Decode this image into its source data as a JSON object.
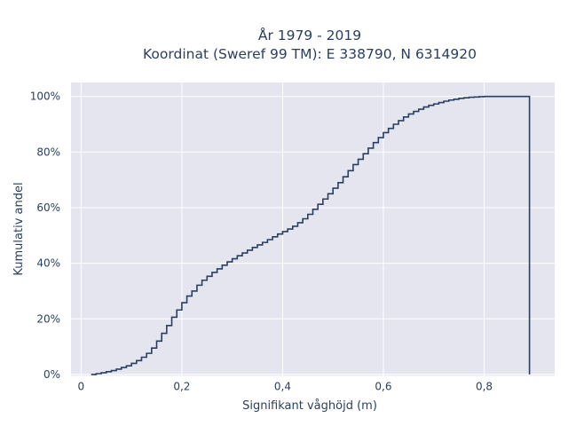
{
  "chart_data": {
    "type": "line",
    "title": "År 1979 - 2019",
    "subtitle": "Koordinat (Sweref 99 TM): E 338790, N 6314920",
    "xlabel": "Signifikant våghöjd (m)",
    "ylabel": "Kumulativ andel",
    "xlim": [
      -0.02,
      0.94
    ],
    "ylim": [
      -0.005,
      1.05
    ],
    "x_ticks": [
      {
        "v": 0,
        "label": "0"
      },
      {
        "v": 0.2,
        "label": "0,2"
      },
      {
        "v": 0.4,
        "label": "0,4"
      },
      {
        "v": 0.6,
        "label": "0,6"
      },
      {
        "v": 0.8,
        "label": "0,8"
      }
    ],
    "y_ticks": [
      {
        "v": 0,
        "label": "0%"
      },
      {
        "v": 0.2,
        "label": "20%"
      },
      {
        "v": 0.4,
        "label": "40%"
      },
      {
        "v": 0.6,
        "label": "60%"
      },
      {
        "v": 0.8,
        "label": "80%"
      },
      {
        "v": 1.0,
        "label": "100%"
      }
    ],
    "grid": true,
    "plot_bg": "#e5e5f0",
    "line_color": "#2a3f5f",
    "step": true,
    "series": [
      {
        "x": [
          0.02,
          0.03,
          0.04,
          0.05,
          0.06,
          0.07,
          0.08,
          0.09,
          0.1,
          0.11,
          0.12,
          0.13,
          0.14,
          0.15,
          0.16,
          0.17,
          0.18,
          0.19,
          0.2,
          0.21,
          0.22,
          0.23,
          0.24,
          0.25,
          0.26,
          0.27,
          0.28,
          0.29,
          0.3,
          0.31,
          0.32,
          0.33,
          0.34,
          0.35,
          0.36,
          0.37,
          0.38,
          0.39,
          0.4,
          0.41,
          0.42,
          0.43,
          0.44,
          0.45,
          0.46,
          0.47,
          0.48,
          0.49,
          0.5,
          0.51,
          0.52,
          0.53,
          0.54,
          0.55,
          0.56,
          0.57,
          0.58,
          0.59,
          0.6,
          0.61,
          0.62,
          0.63,
          0.64,
          0.65,
          0.66,
          0.67,
          0.68,
          0.69,
          0.7,
          0.71,
          0.72,
          0.73,
          0.74,
          0.75,
          0.76,
          0.77,
          0.78,
          0.79,
          0.8,
          0.81,
          0.82,
          0.83,
          0.84,
          0.85,
          0.86,
          0.87,
          0.88,
          0.89
        ],
        "y": [
          0.0,
          0.003,
          0.006,
          0.01,
          0.014,
          0.019,
          0.025,
          0.031,
          0.04,
          0.05,
          0.062,
          0.076,
          0.095,
          0.12,
          0.148,
          0.176,
          0.206,
          0.232,
          0.258,
          0.282,
          0.3,
          0.321,
          0.339,
          0.353,
          0.367,
          0.38,
          0.393,
          0.405,
          0.416,
          0.427,
          0.437,
          0.447,
          0.457,
          0.466,
          0.475,
          0.485,
          0.495,
          0.505,
          0.514,
          0.523,
          0.533,
          0.546,
          0.56,
          0.576,
          0.594,
          0.612,
          0.631,
          0.65,
          0.67,
          0.69,
          0.711,
          0.733,
          0.755,
          0.774,
          0.794,
          0.814,
          0.834,
          0.852,
          0.87,
          0.885,
          0.9,
          0.913,
          0.926,
          0.937,
          0.946,
          0.954,
          0.962,
          0.968,
          0.973,
          0.978,
          0.983,
          0.987,
          0.99,
          0.993,
          0.995,
          0.997,
          0.998,
          0.999,
          1.0,
          1.0,
          1.0,
          1.0,
          1.0,
          1.0,
          1.0,
          1.0,
          1.0,
          1.0
        ]
      }
    ]
  }
}
